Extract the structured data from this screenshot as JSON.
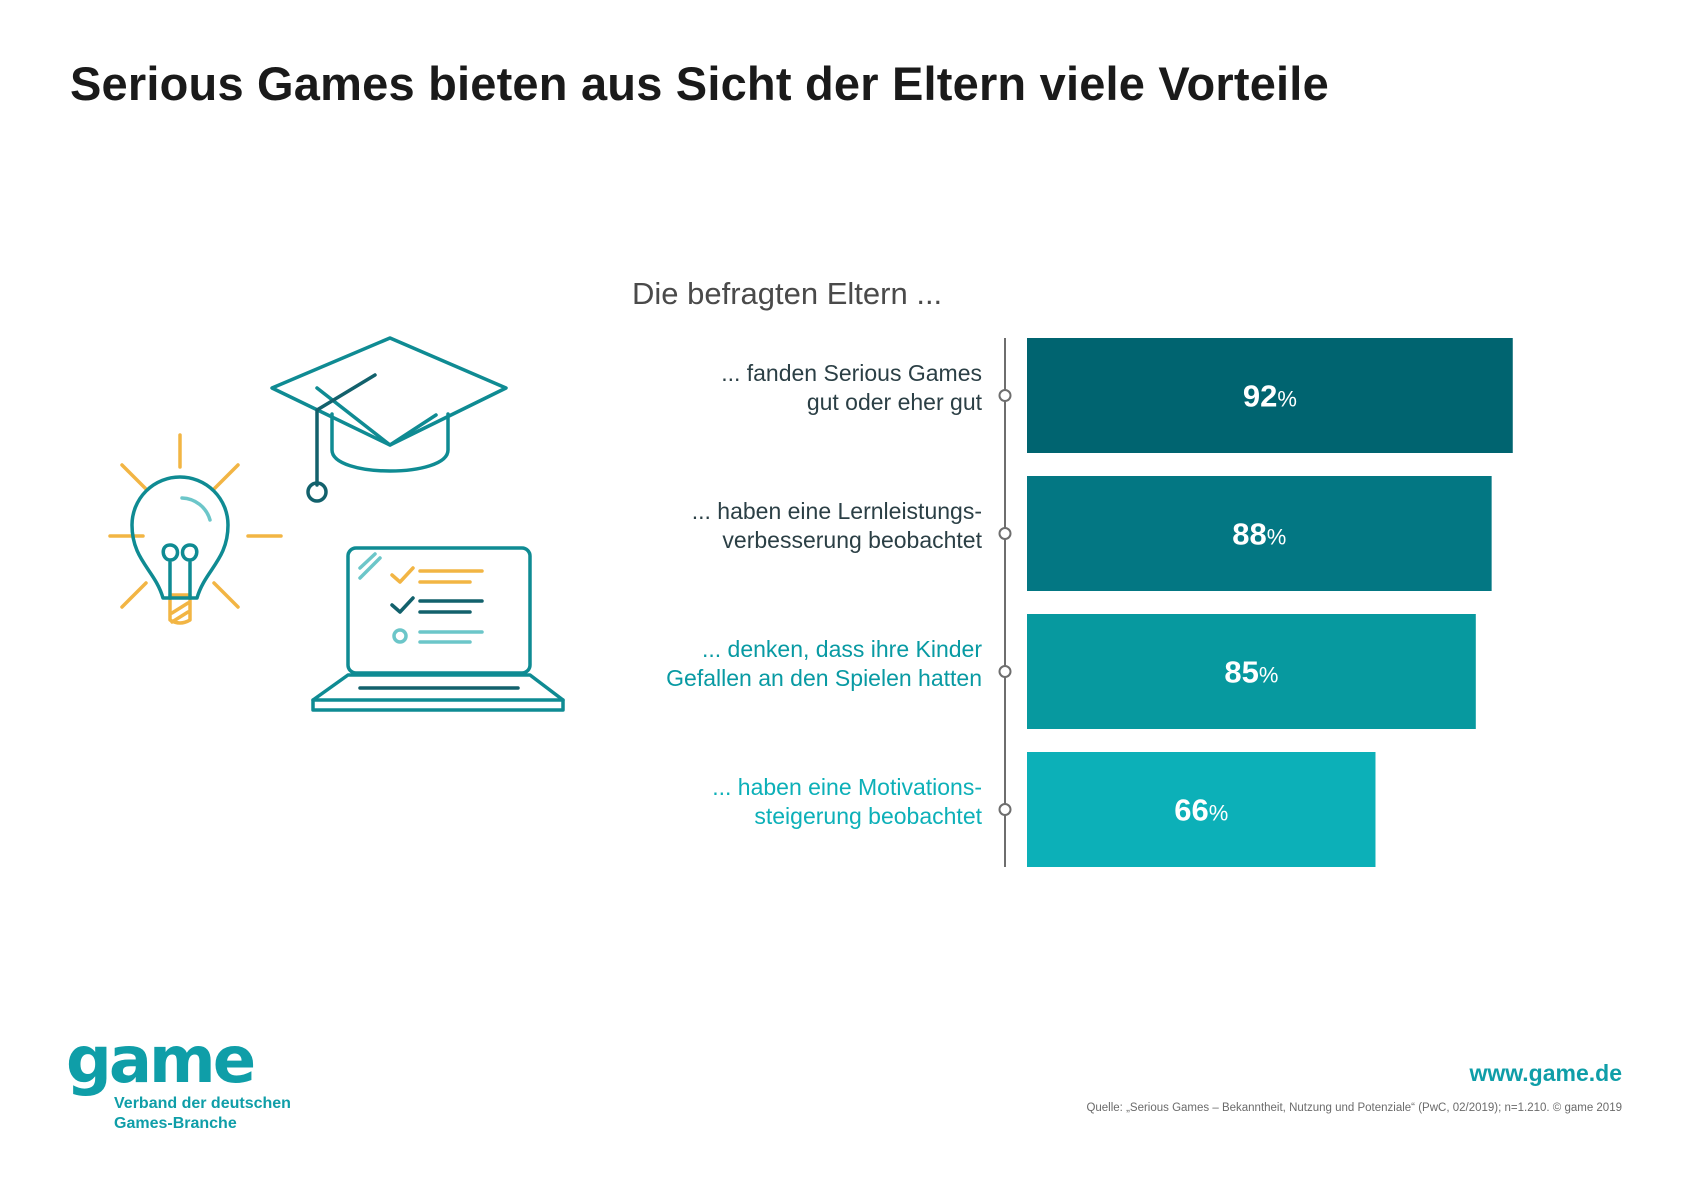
{
  "title": "Serious Games bieten aus Sicht der Eltern viele Vorteile",
  "subtitle": "Die befragten Eltern ...",
  "illustration": {
    "icons": [
      "lightbulb-icon",
      "graduation-cap-icon",
      "laptop-checklist-icon"
    ],
    "colors": {
      "yellow": "#f2b544",
      "teal": "#0f8b93",
      "dark_teal": "#12616c",
      "light_teal": "#6cc6c9"
    }
  },
  "chart_data": {
    "type": "bar",
    "orientation": "horizontal",
    "categories": [
      [
        "... fanden Serious Games",
        "gut oder eher gut"
      ],
      [
        "... haben eine Lernleistungs-",
        "verbesserung beobachtet"
      ],
      [
        "... denken, dass ihre Kinder",
        "Gefallen an den Spielen hatten"
      ],
      [
        "... haben eine Motivations-",
        "steigerung beobachtet"
      ]
    ],
    "values": [
      92,
      88,
      85,
      66
    ],
    "value_unit": "%",
    "xlim": [
      0,
      100
    ],
    "bar_colors": [
      "#006470",
      "#037783",
      "#07999f",
      "#0cb0b8"
    ],
    "label_colors": [
      "#2b3f45",
      "#2b3f45",
      "#089aa3",
      "#0cb0b8"
    ]
  },
  "logo": {
    "wordmark": "game",
    "tagline": [
      "Verband der deutschen",
      "Games-Branche"
    ]
  },
  "website": "www.game.de",
  "source": "Quelle: „Serious Games – Bekanntheit, Nutzung und Potenziale“ (PwC, 02/2019); n=1.210. © game 2019"
}
